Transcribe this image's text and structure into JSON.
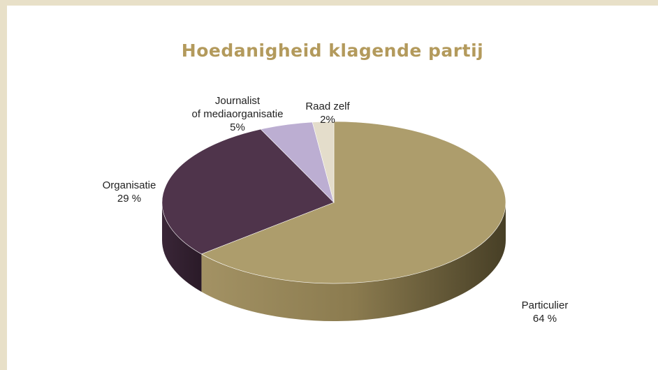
{
  "chart_data": {
    "type": "pie3d",
    "title": "Hoedanigheid klagende partij",
    "categories": [
      "Particulier",
      "Organisatie",
      "Journalist\nof mediaorganisatie",
      "Raad zelf"
    ],
    "values": [
      64,
      29,
      5,
      2
    ],
    "value_labels": [
      "64 %",
      "29 %",
      "5%",
      "2%"
    ],
    "colors": [
      "#ad9d6c",
      "#4f344b",
      "#bcaed2",
      "#e4ddcb"
    ]
  }
}
